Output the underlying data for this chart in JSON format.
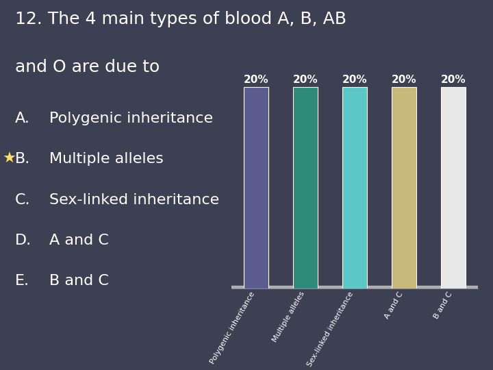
{
  "title_line1": "12. The 4 main types of blood A, B, AB",
  "title_line2": "and O are due to",
  "background_color": "#3d3f52",
  "categories": [
    "Polygenic inheritance",
    "Multiple alleles",
    "Sex-linked inheritance",
    "A and C",
    "B and C"
  ],
  "values": [
    20,
    20,
    20,
    20,
    20
  ],
  "bar_colors": [
    "#5b5b8f",
    "#2e8b7a",
    "#5bc8c8",
    "#c8b87a",
    "#e8e8e8"
  ],
  "bar_label_color": "#ffffff",
  "bar_label_fontsize": 11,
  "text_color": "#ffffff",
  "answer_items": [
    {
      "label": "A.",
      "text": "Polygenic inheritance",
      "star": false
    },
    {
      "label": "B.",
      "text": "Multiple alleles",
      "star": true
    },
    {
      "label": "C.",
      "text": "Sex-linked inheritance",
      "star": false
    },
    {
      "label": "D.",
      "text": "A and C",
      "star": false
    },
    {
      "label": "E.",
      "text": "B and C",
      "star": false
    }
  ],
  "star_color": "#ffe066",
  "ylim": [
    0,
    22
  ],
  "title_fontsize": 18,
  "answer_fontsize": 16,
  "platform_color": "#b0b0b0"
}
